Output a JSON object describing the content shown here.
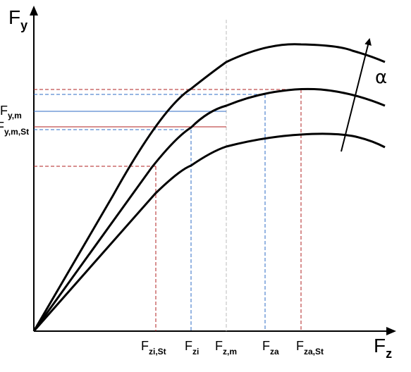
{
  "axes": {
    "y": {
      "main": "F",
      "sub": "y"
    },
    "x": {
      "main": "F",
      "sub": "z"
    }
  },
  "y_labels": {
    "fym": {
      "main": "F",
      "sub": "y,m"
    },
    "fymst": {
      "main": "F",
      "sub": "y,m,St"
    }
  },
  "x_labels": {
    "fzist": {
      "main": "F",
      "sub": "zi,St"
    },
    "fzi": {
      "main": "F",
      "sub": "zi"
    },
    "fzm": {
      "main": "F",
      "sub": "z,m"
    },
    "fza": {
      "main": "F",
      "sub": "za"
    },
    "fzast": {
      "main": "F",
      "sub": "za,St"
    }
  },
  "parameter_label": "α",
  "colors": {
    "curve": "#000000",
    "red": "#b22222",
    "blue": "#2e6bc6",
    "grey": "#bbbbbb"
  }
}
